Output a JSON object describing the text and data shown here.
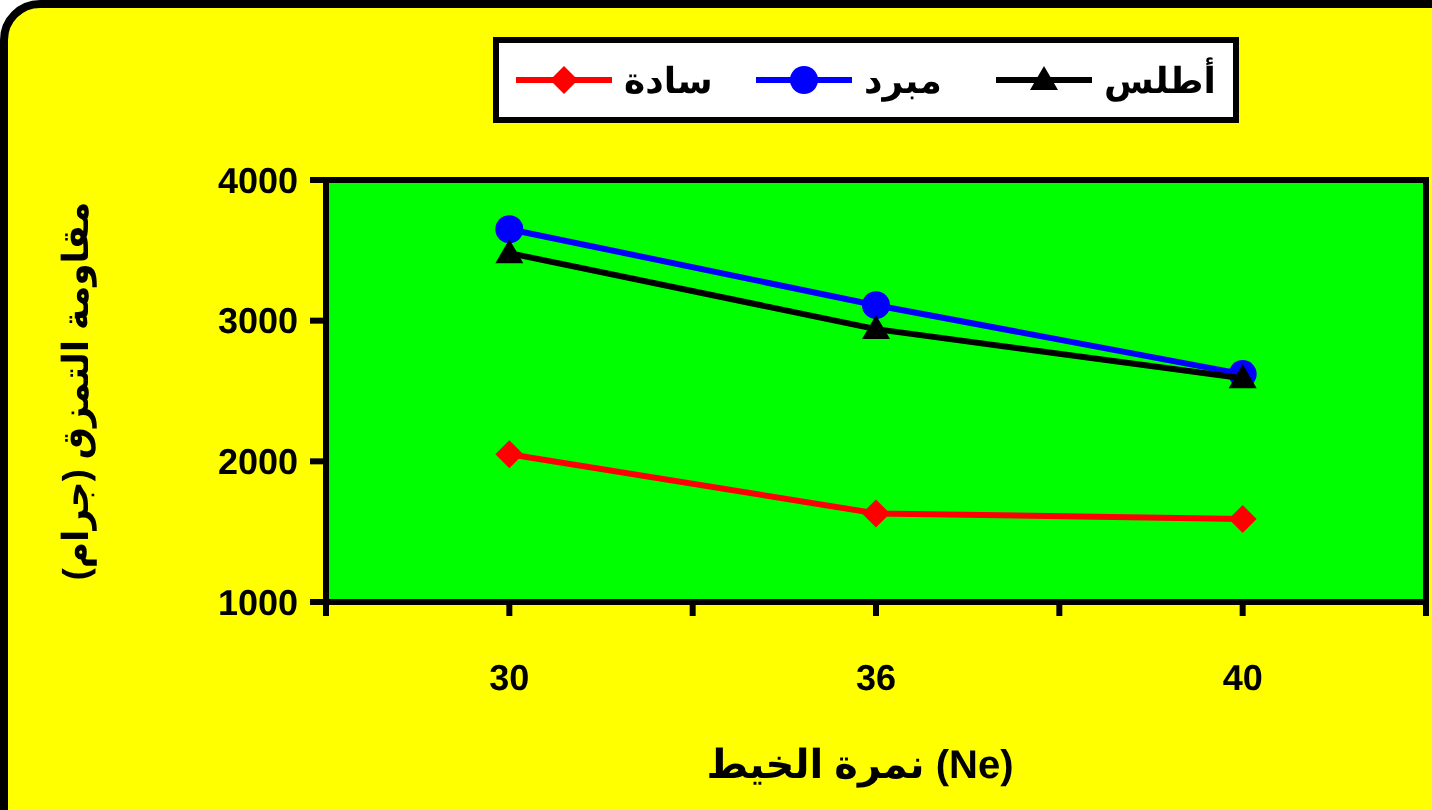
{
  "chart_data": {
    "type": "line",
    "xlabel": "نمرة الخيط (Ne)",
    "ylabel": "مقاومة التمزق (جرام)",
    "categories": [
      "30",
      "36",
      "40"
    ],
    "series": [
      {
        "name": "سادة",
        "color": "#ff0000",
        "marker": "diamond",
        "values": [
          2050,
          1630,
          1590
        ]
      },
      {
        "name": "مبرد",
        "color": "#0000ff",
        "marker": "circle",
        "values": [
          3650,
          3110,
          2620
        ]
      },
      {
        "name": "أطلس",
        "color": "#000000",
        "marker": "triangle",
        "values": [
          3480,
          2940,
          2590
        ]
      }
    ],
    "ylim": [
      1000,
      4000
    ],
    "yticks": [
      1000,
      2000,
      3000,
      4000
    ],
    "grid": false,
    "legend": "top",
    "line_style": "solid"
  }
}
